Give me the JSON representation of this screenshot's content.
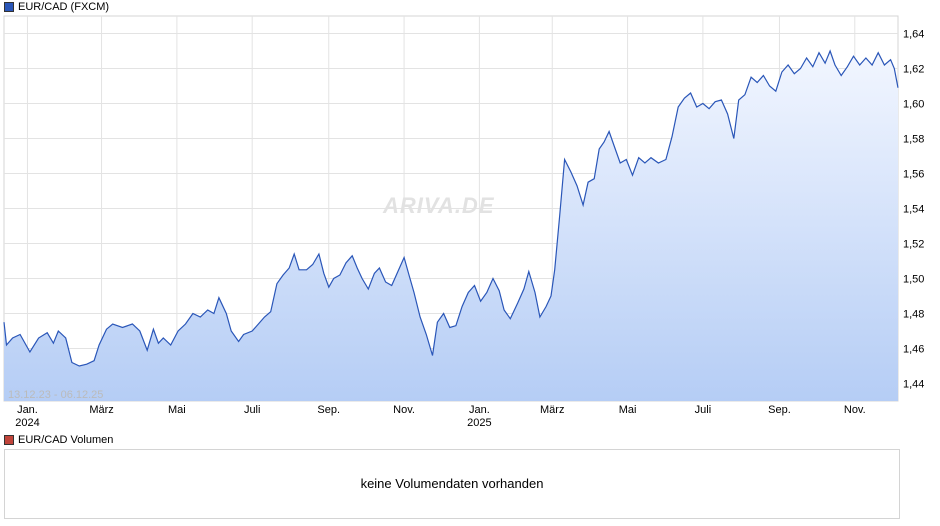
{
  "chart_data": {
    "type": "area",
    "title": "EUR/CAD (FXCM)",
    "series_color": "#2a56b8",
    "fill_top_color": "#f2f6ff",
    "fill_bottom_color": "#b5cdf5",
    "range_label": "13.12.23 - 06.12.25",
    "watermark": "ARIVA.DE",
    "ylim": [
      1.43,
      1.65
    ],
    "y_ticks": [
      {
        "value": 1.44,
        "label": "1,44"
      },
      {
        "value": 1.46,
        "label": "1,46"
      },
      {
        "value": 1.48,
        "label": "1,48"
      },
      {
        "value": 1.5,
        "label": "1,50"
      },
      {
        "value": 1.52,
        "label": "1,52"
      },
      {
        "value": 1.54,
        "label": "1,54"
      },
      {
        "value": 1.56,
        "label": "1,56"
      },
      {
        "value": 1.58,
        "label": "1,58"
      },
      {
        "value": 1.6,
        "label": "1,60"
      },
      {
        "value": 1.62,
        "label": "1,62"
      },
      {
        "value": 1.64,
        "label": "1,64"
      }
    ],
    "xlim": [
      "2023-12-13",
      "2025-12-06"
    ],
    "x_ticks": [
      {
        "date": "2024-01-01",
        "label": "Jan.",
        "sublabel": "2024"
      },
      {
        "date": "2024-03-01",
        "label": "März",
        "sublabel": ""
      },
      {
        "date": "2024-05-01",
        "label": "Mai",
        "sublabel": ""
      },
      {
        "date": "2024-07-01",
        "label": "Juli",
        "sublabel": ""
      },
      {
        "date": "2024-09-01",
        "label": "Sep.",
        "sublabel": ""
      },
      {
        "date": "2024-11-01",
        "label": "Nov.",
        "sublabel": ""
      },
      {
        "date": "2025-01-01",
        "label": "Jan.",
        "sublabel": "2025"
      },
      {
        "date": "2025-03-01",
        "label": "März",
        "sublabel": ""
      },
      {
        "date": "2025-05-01",
        "label": "Mai",
        "sublabel": ""
      },
      {
        "date": "2025-07-01",
        "label": "Juli",
        "sublabel": ""
      },
      {
        "date": "2025-09-01",
        "label": "Sep.",
        "sublabel": ""
      },
      {
        "date": "2025-11-01",
        "label": "Nov.",
        "sublabel": ""
      }
    ],
    "grid": true,
    "points": [
      [
        "2023-12-13",
        1.475
      ],
      [
        "2023-12-15",
        1.462
      ],
      [
        "2023-12-20",
        1.466
      ],
      [
        "2023-12-26",
        1.468
      ],
      [
        "2024-01-03",
        1.458
      ],
      [
        "2024-01-10",
        1.466
      ],
      [
        "2024-01-17",
        1.469
      ],
      [
        "2024-01-22",
        1.463
      ],
      [
        "2024-01-26",
        1.47
      ],
      [
        "2024-02-01",
        1.466
      ],
      [
        "2024-02-06",
        1.452
      ],
      [
        "2024-02-12",
        1.45
      ],
      [
        "2024-02-18",
        1.451
      ],
      [
        "2024-02-24",
        1.453
      ],
      [
        "2024-02-28",
        1.462
      ],
      [
        "2024-03-05",
        1.471
      ],
      [
        "2024-03-10",
        1.474
      ],
      [
        "2024-03-18",
        1.472
      ],
      [
        "2024-03-26",
        1.474
      ],
      [
        "2024-04-01",
        1.47
      ],
      [
        "2024-04-07",
        1.459
      ],
      [
        "2024-04-12",
        1.471
      ],
      [
        "2024-04-16",
        1.463
      ],
      [
        "2024-04-20",
        1.466
      ],
      [
        "2024-04-26",
        1.462
      ],
      [
        "2024-05-02",
        1.47
      ],
      [
        "2024-05-08",
        1.474
      ],
      [
        "2024-05-14",
        1.48
      ],
      [
        "2024-05-20",
        1.478
      ],
      [
        "2024-05-26",
        1.482
      ],
      [
        "2024-05-31",
        1.48
      ],
      [
        "2024-06-04",
        1.489
      ],
      [
        "2024-06-10",
        1.48
      ],
      [
        "2024-06-14",
        1.47
      ],
      [
        "2024-06-20",
        1.464
      ],
      [
        "2024-06-24",
        1.468
      ],
      [
        "2024-07-01",
        1.47
      ],
      [
        "2024-07-06",
        1.474
      ],
      [
        "2024-07-11",
        1.478
      ],
      [
        "2024-07-16",
        1.481
      ],
      [
        "2024-07-21",
        1.497
      ],
      [
        "2024-07-26",
        1.502
      ],
      [
        "2024-07-31",
        1.506
      ],
      [
        "2024-08-04",
        1.514
      ],
      [
        "2024-08-08",
        1.505
      ],
      [
        "2024-08-14",
        1.505
      ],
      [
        "2024-08-19",
        1.508
      ],
      [
        "2024-08-24",
        1.514
      ],
      [
        "2024-08-28",
        1.503
      ],
      [
        "2024-09-01",
        1.495
      ],
      [
        "2024-09-05",
        1.5
      ],
      [
        "2024-09-10",
        1.502
      ],
      [
        "2024-09-15",
        1.509
      ],
      [
        "2024-09-20",
        1.513
      ],
      [
        "2024-09-24",
        1.506
      ],
      [
        "2024-09-28",
        1.5
      ],
      [
        "2024-10-03",
        1.494
      ],
      [
        "2024-10-08",
        1.503
      ],
      [
        "2024-10-12",
        1.506
      ],
      [
        "2024-10-17",
        1.498
      ],
      [
        "2024-10-22",
        1.496
      ],
      [
        "2024-10-27",
        1.504
      ],
      [
        "2024-11-01",
        1.512
      ],
      [
        "2024-11-05",
        1.502
      ],
      [
        "2024-11-09",
        1.492
      ],
      [
        "2024-11-14",
        1.478
      ],
      [
        "2024-11-19",
        1.468
      ],
      [
        "2024-11-24",
        1.456
      ],
      [
        "2024-11-28",
        1.475
      ],
      [
        "2024-12-03",
        1.48
      ],
      [
        "2024-12-08",
        1.472
      ],
      [
        "2024-12-13",
        1.473
      ],
      [
        "2024-12-18",
        1.484
      ],
      [
        "2024-12-23",
        1.492
      ],
      [
        "2024-12-28",
        1.496
      ],
      [
        "2025-01-02",
        1.487
      ],
      [
        "2025-01-07",
        1.492
      ],
      [
        "2025-01-12",
        1.5
      ],
      [
        "2025-01-17",
        1.493
      ],
      [
        "2025-01-21",
        1.482
      ],
      [
        "2025-01-26",
        1.477
      ],
      [
        "2025-02-01",
        1.486
      ],
      [
        "2025-02-06",
        1.494
      ],
      [
        "2025-02-10",
        1.504
      ],
      [
        "2025-02-15",
        1.492
      ],
      [
        "2025-02-19",
        1.478
      ],
      [
        "2025-02-24",
        1.484
      ],
      [
        "2025-02-28",
        1.49
      ],
      [
        "2025-03-03",
        1.505
      ],
      [
        "2025-03-07",
        1.536
      ],
      [
        "2025-03-11",
        1.568
      ],
      [
        "2025-03-16",
        1.561
      ],
      [
        "2025-03-21",
        1.553
      ],
      [
        "2025-03-26",
        1.542
      ],
      [
        "2025-03-30",
        1.555
      ],
      [
        "2025-04-04",
        1.557
      ],
      [
        "2025-04-08",
        1.574
      ],
      [
        "2025-04-12",
        1.578
      ],
      [
        "2025-04-16",
        1.584
      ],
      [
        "2025-04-20",
        1.576
      ],
      [
        "2025-04-25",
        1.566
      ],
      [
        "2025-04-30",
        1.568
      ],
      [
        "2025-05-05",
        1.559
      ],
      [
        "2025-05-10",
        1.569
      ],
      [
        "2025-05-15",
        1.566
      ],
      [
        "2025-05-20",
        1.569
      ],
      [
        "2025-05-26",
        1.566
      ],
      [
        "2025-06-01",
        1.568
      ],
      [
        "2025-06-06",
        1.581
      ],
      [
        "2025-06-11",
        1.598
      ],
      [
        "2025-06-16",
        1.603
      ],
      [
        "2025-06-21",
        1.606
      ],
      [
        "2025-06-26",
        1.598
      ],
      [
        "2025-07-01",
        1.6
      ],
      [
        "2025-07-06",
        1.597
      ],
      [
        "2025-07-11",
        1.601
      ],
      [
        "2025-07-16",
        1.602
      ],
      [
        "2025-07-21",
        1.594
      ],
      [
        "2025-07-26",
        1.58
      ],
      [
        "2025-07-30",
        1.602
      ],
      [
        "2025-08-04",
        1.605
      ],
      [
        "2025-08-09",
        1.615
      ],
      [
        "2025-08-14",
        1.612
      ],
      [
        "2025-08-19",
        1.616
      ],
      [
        "2025-08-24",
        1.61
      ],
      [
        "2025-08-29",
        1.607
      ],
      [
        "2025-09-03",
        1.618
      ],
      [
        "2025-09-08",
        1.622
      ],
      [
        "2025-09-13",
        1.617
      ],
      [
        "2025-09-18",
        1.62
      ],
      [
        "2025-09-23",
        1.626
      ],
      [
        "2025-09-28",
        1.621
      ],
      [
        "2025-10-03",
        1.629
      ],
      [
        "2025-10-08",
        1.623
      ],
      [
        "2025-10-12",
        1.63
      ],
      [
        "2025-10-16",
        1.622
      ],
      [
        "2025-10-21",
        1.616
      ],
      [
        "2025-10-26",
        1.621
      ],
      [
        "2025-10-31",
        1.627
      ],
      [
        "2025-11-05",
        1.622
      ],
      [
        "2025-11-10",
        1.626
      ],
      [
        "2025-11-15",
        1.622
      ],
      [
        "2025-11-20",
        1.629
      ],
      [
        "2025-11-25",
        1.622
      ],
      [
        "2025-11-30",
        1.625
      ],
      [
        "2025-12-03",
        1.62
      ],
      [
        "2025-12-06",
        1.609
      ]
    ]
  },
  "volume": {
    "title": "EUR/CAD Volumen",
    "message": "keine Volumendaten vorhanden",
    "swatch_color": "#c0443a"
  }
}
